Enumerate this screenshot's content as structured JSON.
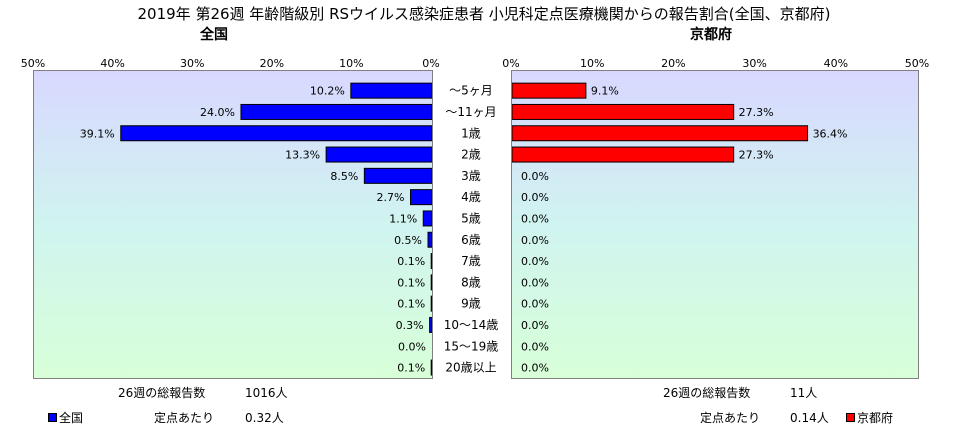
{
  "title": "2019年 第26週 年齢階級別 RSウイルス感染症患者 小児科定点医療機関からの報告割合(全国、京都府)",
  "chart_data": {
    "type": "bar",
    "categories": [
      "～5ヶ月",
      "～11ヶ月",
      "1歳",
      "2歳",
      "3歳",
      "4歳",
      "5歳",
      "6歳",
      "7歳",
      "8歳",
      "9歳",
      "10～14歳",
      "15～19歳",
      "20歳以上"
    ],
    "series": [
      {
        "name": "全国",
        "color": "#0000ff",
        "values": [
          10.2,
          24.0,
          39.1,
          13.3,
          8.5,
          2.7,
          1.1,
          0.5,
          0.1,
          0.1,
          0.1,
          0.3,
          0.0,
          0.1
        ],
        "labels": [
          "10.2%",
          "24.0%",
          "39.1%",
          "13.3%",
          "8.5%",
          "2.7%",
          "1.1%",
          "0.5%",
          "0.1%",
          "0.1%",
          "0.1%",
          "0.3%",
          "0.0%",
          "0.1%"
        ]
      },
      {
        "name": "京都府",
        "color": "#ff0000",
        "values": [
          9.1,
          27.3,
          36.4,
          27.3,
          0.0,
          0.0,
          0.0,
          0.0,
          0.0,
          0.0,
          0.0,
          0.0,
          0.0,
          0.0
        ],
        "labels": [
          "9.1%",
          "27.3%",
          "36.4%",
          "27.3%",
          "0.0%",
          "0.0%",
          "0.0%",
          "0.0%",
          "0.0%",
          "0.0%",
          "0.0%",
          "0.0%",
          "0.0%",
          "0.0%"
        ]
      }
    ],
    "xlim": [
      0,
      50
    ],
    "ticks": [
      "0%",
      "10%",
      "20%",
      "30%",
      "40%",
      "50%"
    ],
    "legend_position": "bottom-left / bottom-right",
    "grid": false
  },
  "left": {
    "subtitle": "全国",
    "legend": "全国",
    "total_label": "26週の総報告数",
    "total_value": "1016人",
    "per_label": "定点あたり",
    "per_value": "0.32人"
  },
  "right": {
    "subtitle": "京都府",
    "legend": "京都府",
    "total_label": "26週の総報告数",
    "total_value": "11人",
    "per_label": "定点あたり",
    "per_value": "0.14人"
  }
}
